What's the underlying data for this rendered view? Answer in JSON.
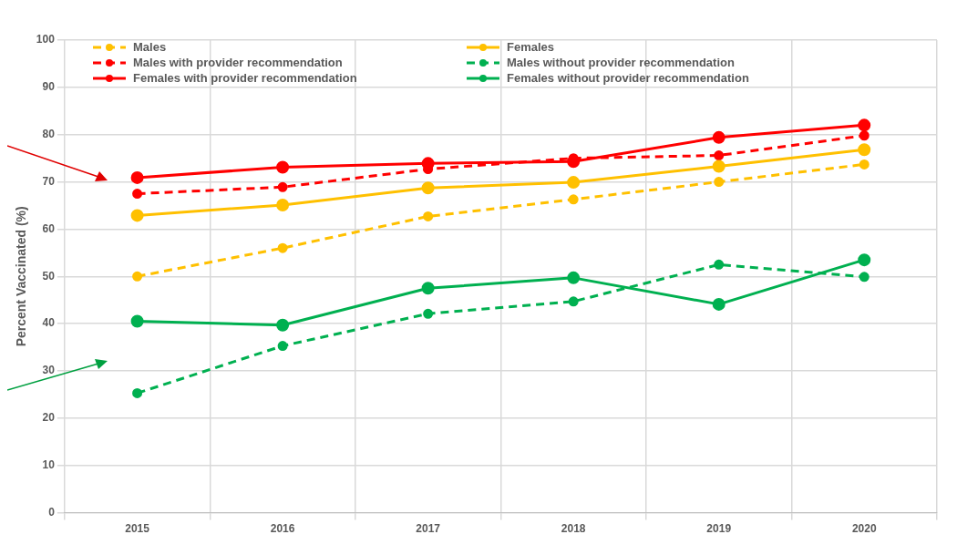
{
  "chart_data": {
    "type": "line",
    "ylabel": "Percent Vaccinated (%)",
    "categories": [
      "2015",
      "2016",
      "2017",
      "2018",
      "2019",
      "2020"
    ],
    "series": [
      {
        "name": "Males",
        "color": "#ffc000",
        "line_style": "dashed",
        "values": [
          50,
          56,
          62.7,
          66.3,
          70,
          73.7
        ]
      },
      {
        "name": "Females",
        "color": "#ffc000",
        "line_style": "solid",
        "values": [
          62.9,
          65.1,
          68.7,
          69.9,
          73.3,
          76.8
        ]
      },
      {
        "name": "Males with provider recommendation",
        "color": "#ff0000",
        "line_style": "dashed",
        "values": [
          67.5,
          68.9,
          72.7,
          75,
          75.6,
          79.8
        ]
      },
      {
        "name": "Males without provider recommendation",
        "color": "#00b050",
        "line_style": "dashed",
        "values": [
          25.3,
          35.3,
          42.1,
          44.7,
          52.5,
          49.9
        ]
      },
      {
        "name": "Females with provider recommendation",
        "color": "#ff0000",
        "line_style": "solid",
        "values": [
          70.9,
          73.1,
          73.9,
          74.3,
          79.4,
          82
        ]
      },
      {
        "name": "Females without provider recommendation",
        "color": "#00b050",
        "line_style": "solid",
        "values": [
          40.5,
          39.7,
          47.5,
          49.7,
          44.1,
          53.5
        ]
      }
    ],
    "ylim": [
      0,
      100
    ],
    "yticks": [
      0,
      10,
      20,
      30,
      40,
      50,
      60,
      70,
      80,
      90,
      100
    ],
    "grid": true,
    "legend": "top",
    "marker": "circle"
  }
}
